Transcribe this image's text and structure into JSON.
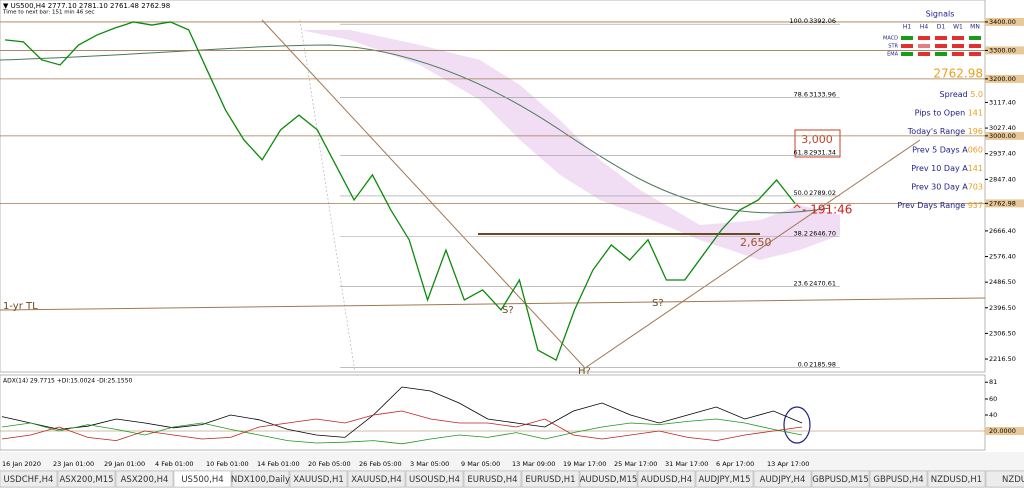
{
  "header": {
    "title": "▼ US500,H4  2777.10 2781.10 2761.48 2762.98",
    "timer": "Time to next bar: 151 min 46 sec"
  },
  "price_axis": {
    "ylim": [
      2171,
      3477
    ],
    "ticks": [
      {
        "text": "3400.00",
        "level": true
      },
      {
        "text": "3300.00",
        "level": true
      },
      {
        "text": "3200.00",
        "level": true
      },
      {
        "text": "3117.40",
        "level": false
      },
      {
        "text": "3027.40",
        "level": false
      },
      {
        "text": "3000.00",
        "level": true
      },
      {
        "text": "2937.40",
        "level": false
      },
      {
        "text": "2847.40",
        "level": false
      },
      {
        "text": "2762.98",
        "level": true
      },
      {
        "text": "2666.40",
        "level": false
      },
      {
        "text": "2576.40",
        "level": false
      },
      {
        "text": "2486.50",
        "level": false
      },
      {
        "text": "2396.50",
        "level": false
      },
      {
        "text": "2306.50",
        "level": false
      },
      {
        "text": "2216.50",
        "level": false
      }
    ]
  },
  "price": {
    "color": "#0a8a0a",
    "values": [
      3337,
      3330,
      3267,
      3249,
      3319,
      3354,
      3379,
      3400,
      3389,
      3400,
      3372,
      3231,
      3091,
      2986,
      2916,
      3021,
      3073,
      3021,
      2898,
      2775,
      2863,
      2740,
      2635,
      2424,
      2599,
      2424,
      2459,
      2389,
      2494,
      2248,
      2213,
      2389,
      2529,
      2617,
      2564,
      2635,
      2494,
      2494,
      2582,
      2670,
      2740,
      2775,
      2845,
      2763
    ]
  },
  "fib": [
    [
      "100.0",
      "3392.06"
    ],
    [
      "78.6",
      "3133.96"
    ],
    [
      "61.8",
      "2931.34"
    ],
    [
      "50.0",
      "2789.02"
    ],
    [
      "38.2",
      "2646.70"
    ],
    [
      "23.6",
      "2470.61"
    ],
    [
      "0.0",
      "2185.98"
    ]
  ],
  "annotations": {
    "box": "3,000",
    "countdown": "^- 191:46",
    "support": "2,650",
    "shoulder_left": "S?",
    "shoulder_right": "S?",
    "head": "H?",
    "trendline": "1-yr TL"
  },
  "signals": {
    "title": "Signals",
    "columns": [
      "H1",
      "H4",
      "D1",
      "W1",
      "MN"
    ],
    "rows": [
      {
        "name": "MACD",
        "colors": [
          "#1a9a1a",
          "#e03030",
          "#e03030",
          "#e03030",
          "#1a9a1a"
        ]
      },
      {
        "name": "STR",
        "colors": [
          "#e03030",
          "#e08080",
          "#e03030",
          "#e03030",
          "#e03030"
        ]
      },
      {
        "name": "EMA",
        "colors": [
          "#1a9a1a",
          "#e03030",
          "#1a9a1a",
          "#e03030",
          "#e03030"
        ]
      }
    ],
    "price": "2762.98",
    "stats": [
      [
        "Spread ",
        "5.0"
      ],
      [
        "Pips to Open ",
        "141"
      ],
      [
        "Today's Range ",
        "196"
      ],
      [
        "Prev 5 Days A",
        "060"
      ],
      [
        "Prev 10 Day A",
        "141"
      ],
      [
        "Prev 30 Day A",
        "703"
      ],
      [
        "Prev Days Range ",
        "937"
      ]
    ]
  },
  "adx": {
    "label": "ADX(14) 29.7715 +DI:15.0024 -DI:25.1550",
    "ylim": [
      0,
      90
    ],
    "ticks": [
      "81",
      "60",
      "40",
      "20"
    ],
    "level": "20.0000",
    "lines": [
      {
        "color": "#000000",
        "values": [
          38,
          30,
          22,
          26,
          35,
          30,
          24,
          28,
          40,
          34,
          22,
          15,
          12,
          40,
          75,
          70,
          55,
          35,
          30,
          25,
          45,
          55,
          40,
          30,
          40,
          50,
          35,
          45,
          30
        ]
      },
      {
        "color": "#1a9a1a",
        "values": [
          25,
          30,
          20,
          28,
          22,
          15,
          25,
          30,
          22,
          15,
          8,
          5,
          6,
          8,
          4,
          10,
          15,
          12,
          18,
          10,
          18,
          25,
          30,
          28,
          32,
          35,
          30,
          22,
          15
        ]
      },
      {
        "color": "#c02020",
        "values": [
          10,
          15,
          25,
          12,
          8,
          20,
          15,
          10,
          12,
          25,
          30,
          35,
          30,
          40,
          45,
          35,
          30,
          30,
          25,
          35,
          15,
          10,
          15,
          20,
          12,
          8,
          15,
          20,
          25
        ]
      }
    ]
  },
  "dates": [
    "16 Jan 2020",
    "23 Jan 01:00",
    "29 Jan 01:00",
    "4 Feb 01:00",
    "10 Feb 01:00",
    "14 Feb 01:00",
    "20 Feb 05:00",
    "26 Feb 05:00",
    "3 Mar 05:00",
    "9 Mar 05:00",
    "13 Mar 09:00",
    "19 Mar 17:00",
    "25 Mar 17:00",
    "31 Mar 17:00",
    "6 Apr 17:00",
    "13 Apr 17:00"
  ],
  "tabs": [
    "USDCHF,H4",
    "ASX200,M15",
    "ASX200,H4",
    "US500,H4",
    "NDX100,Daily",
    "XAUUSD,H1",
    "XAUUSD,H4",
    "USOUSD,H4",
    "EURUSD,H4",
    "EURUSD,H1",
    "AUDUSD,M15",
    "AUDUSD,H4",
    "AUDJPY,M15",
    "AUDJPY,H4",
    "GBPUSD,M15",
    "GBPUSD,H4",
    "NZDUSD,H1",
    "NZDU"
  ],
  "active_tab": "US500,H4"
}
